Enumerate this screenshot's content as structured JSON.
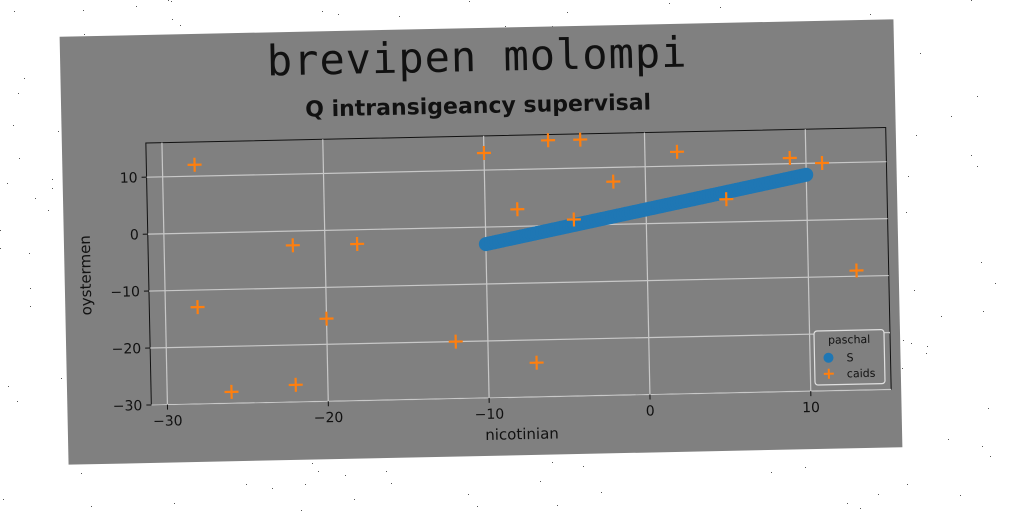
{
  "figure": {
    "suptitle": "brevipen molompi",
    "title": "Q intransigeancy supervisal",
    "background": "#808080"
  },
  "chart_data": {
    "type": "scatter",
    "title": "Q intransigeancy supervisal",
    "xlabel": "nicotinian",
    "ylabel": "oystermen",
    "xlim": [
      -31,
      15
    ],
    "ylim": [
      -30,
      16
    ],
    "xticks": [
      -30,
      -20,
      -10,
      0,
      10
    ],
    "yticks": [
      -30,
      -20,
      -10,
      0,
      10
    ],
    "grid": true,
    "legend": {
      "title": "paschal",
      "position": "lower-right"
    },
    "series": [
      {
        "name": "S",
        "marker": "circle",
        "color": "#1f77b4",
        "x_range": [
          -10,
          10
        ],
        "y_at_x_start": -3,
        "y_at_x_end": 8,
        "points": 120
      },
      {
        "name": "caids",
        "marker": "plus",
        "color": "#ff7f0e",
        "points_xy": [
          [
            -28,
            12
          ],
          [
            -28,
            -13
          ],
          [
            -26,
            -28
          ],
          [
            -22,
            -2.5
          ],
          [
            -22,
            -27
          ],
          [
            -20,
            -15.5
          ],
          [
            -18,
            -2.5
          ],
          [
            -12,
            -20
          ],
          [
            -10,
            13
          ],
          [
            -8,
            3
          ],
          [
            -7,
            -24
          ],
          [
            -6,
            15
          ],
          [
            -4.5,
            1
          ],
          [
            -4,
            15
          ],
          [
            -2,
            7.5
          ],
          [
            2,
            12.5
          ],
          [
            5,
            4
          ],
          [
            9,
            11
          ],
          [
            11,
            10
          ],
          [
            13,
            -9
          ]
        ]
      }
    ]
  }
}
